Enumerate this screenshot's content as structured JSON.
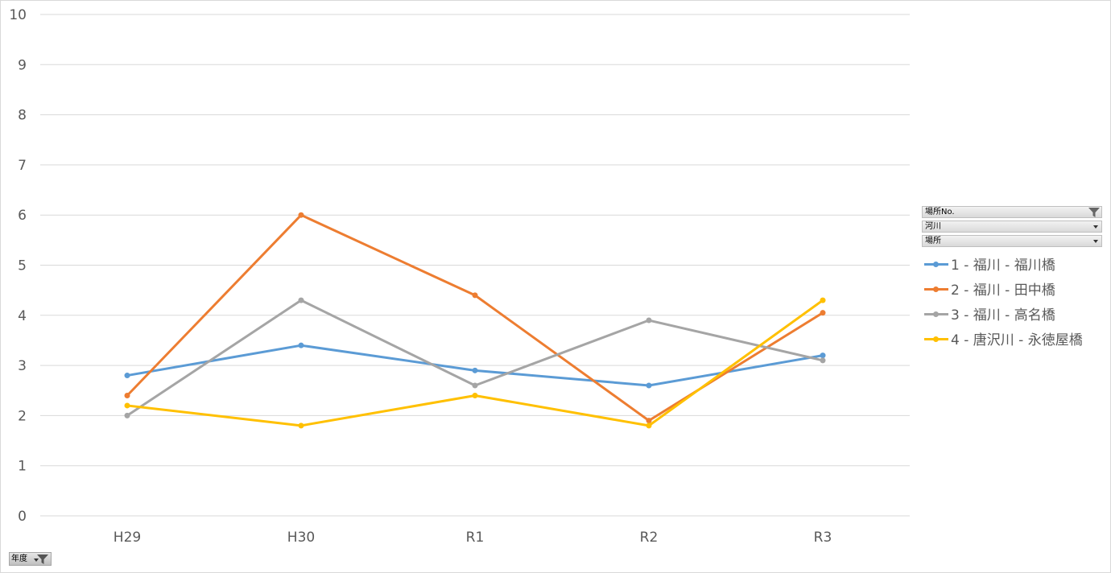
{
  "colors": {
    "grid": "#d9d9d9",
    "axis_text": "#595959"
  },
  "filters": {
    "field1": "場所No.",
    "field2": "河川",
    "field3": "場所",
    "axis_field": "年度"
  },
  "chart_data": {
    "type": "line",
    "categories": [
      "H29",
      "H30",
      "R1",
      "R2",
      "R3"
    ],
    "ylim": [
      0,
      10
    ],
    "yticks": [
      "0",
      "1",
      "2",
      "3",
      "4",
      "5",
      "6",
      "7",
      "8",
      "9",
      "10"
    ],
    "grid": true,
    "legend_position": "right",
    "series": [
      {
        "name": "1 - 福川 - 福川橋",
        "color": "#5b9bd5",
        "values": [
          2.8,
          3.4,
          2.9,
          2.6,
          3.2
        ]
      },
      {
        "name": "2 - 福川 - 田中橋",
        "color": "#ed7d31",
        "values": [
          2.4,
          6.0,
          4.4,
          1.9,
          4.05
        ]
      },
      {
        "name": "3 - 福川 - 高名橋",
        "color": "#a5a5a5",
        "values": [
          2.0,
          4.3,
          2.6,
          3.9,
          3.1
        ]
      },
      {
        "name": "4 - 唐沢川 - 永徳屋橋",
        "color": "#ffc000",
        "values": [
          2.2,
          1.8,
          2.4,
          1.8,
          4.3
        ]
      }
    ]
  }
}
